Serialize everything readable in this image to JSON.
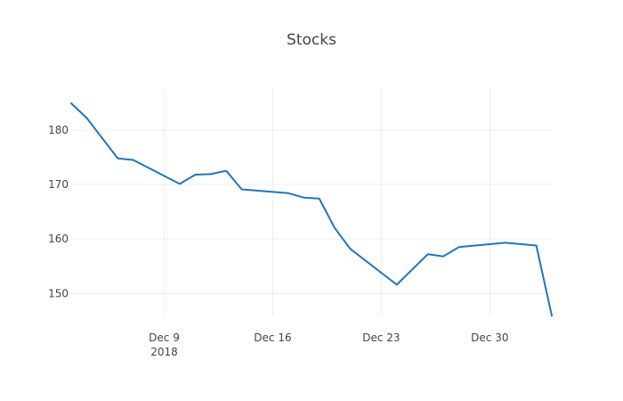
{
  "chart_data": {
    "type": "line",
    "title": "Stocks",
    "xlabel": "",
    "ylabel": "",
    "x_axis": {
      "kind": "date",
      "range": [
        "2018-12-03",
        "2019-01-03"
      ],
      "ticks": [
        {
          "value": "2018-12-09",
          "label": "Dec 9",
          "sublabel": "2018"
        },
        {
          "value": "2018-12-16",
          "label": "Dec 16",
          "sublabel": ""
        },
        {
          "value": "2018-12-23",
          "label": "Dec 23",
          "sublabel": ""
        },
        {
          "value": "2018-12-30",
          "label": "Dec 30",
          "sublabel": ""
        }
      ]
    },
    "y_axis": {
      "range": [
        145.8,
        187.5
      ],
      "ticks": [
        150,
        160,
        170,
        180
      ]
    },
    "grid": true,
    "series": [
      {
        "color": "#1f77b4",
        "x": [
          "2018-12-03",
          "2018-12-04",
          "2018-12-06",
          "2018-12-07",
          "2018-12-10",
          "2018-12-11",
          "2018-12-12",
          "2018-12-13",
          "2018-12-14",
          "2018-12-17",
          "2018-12-18",
          "2018-12-19",
          "2018-12-20",
          "2018-12-21",
          "2018-12-24",
          "2018-12-26",
          "2018-12-27",
          "2018-12-28",
          "2018-12-31",
          "2019-01-02",
          "2019-01-03"
        ],
        "values": [
          184.9,
          182.2,
          174.8,
          174.5,
          170.1,
          171.8,
          171.9,
          172.5,
          169.1,
          168.4,
          167.6,
          167.4,
          162.0,
          158.2,
          151.6,
          157.2,
          156.8,
          158.5,
          159.3,
          158.8,
          145.9
        ]
      }
    ]
  }
}
